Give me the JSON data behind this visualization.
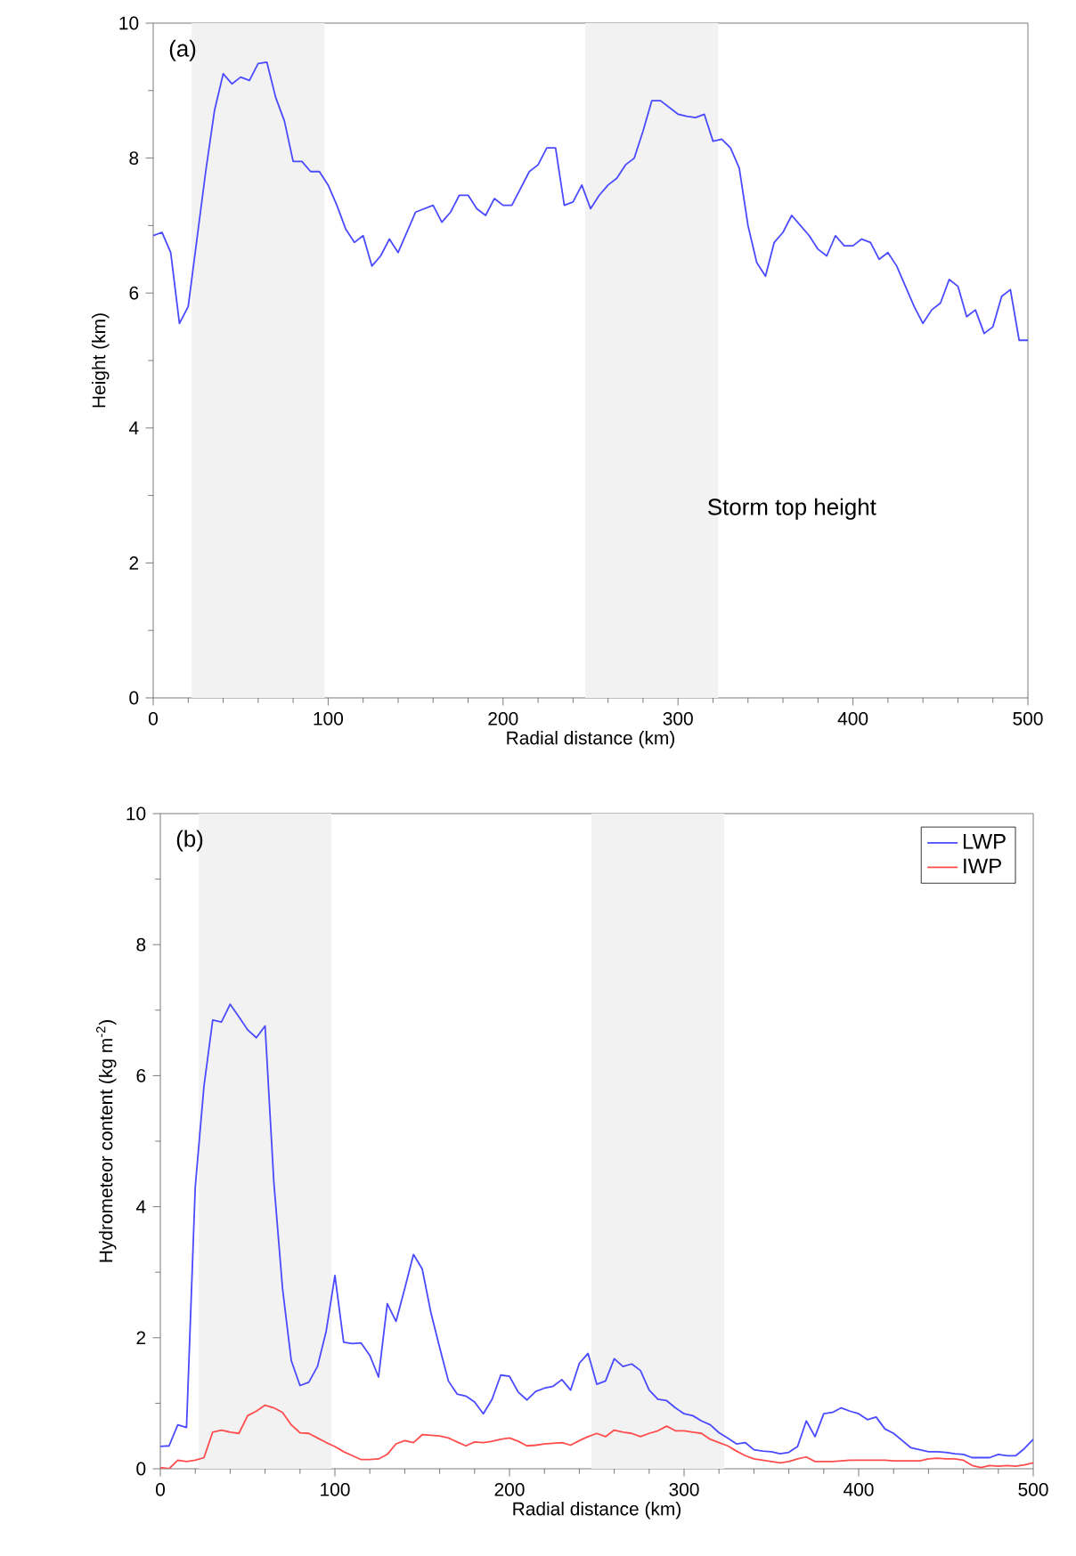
{
  "chart_data": [
    {
      "type": "line",
      "xlabel": "Radial distance (km)",
      "ylabel": "Height (km)",
      "annotations": [
        "(a)",
        "Storm top height"
      ],
      "xlim": [
        0,
        500
      ],
      "ylim": [
        0,
        10
      ],
      "xticks": [
        0,
        100,
        200,
        300,
        400,
        500
      ],
      "yticks": [
        0,
        2,
        4,
        6,
        8,
        10
      ],
      "grid": false,
      "legend": false,
      "bands": [
        {
          "axis": "x",
          "from": 22,
          "to": 98,
          "color": "#f2f2f2"
        },
        {
          "axis": "x",
          "from": 247,
          "to": 323,
          "color": "#f2f2f2"
        }
      ],
      "x": [
        0,
        5,
        10,
        15,
        20,
        25,
        30,
        35,
        40,
        45,
        50,
        55,
        60,
        65,
        70,
        75,
        80,
        85,
        90,
        95,
        100,
        105,
        110,
        115,
        120,
        125,
        130,
        135,
        140,
        145,
        150,
        155,
        160,
        165,
        170,
        175,
        180,
        185,
        190,
        195,
        200,
        205,
        210,
        215,
        220,
        225,
        230,
        235,
        240,
        245,
        250,
        255,
        260,
        265,
        270,
        275,
        280,
        285,
        290,
        295,
        300,
        305,
        310,
        315,
        320,
        325,
        330,
        335,
        340,
        345,
        350,
        355,
        360,
        365,
        370,
        375,
        380,
        385,
        390,
        395,
        400,
        405,
        410,
        415,
        420,
        425,
        430,
        435,
        440,
        445,
        450,
        455,
        460,
        465,
        470,
        475,
        480,
        485,
        490,
        495,
        500
      ],
      "series": [
        {
          "color": "#4a4aff",
          "values": [
            6.85,
            6.9,
            6.6,
            5.55,
            5.8,
            6.8,
            7.8,
            8.7,
            9.25,
            9.1,
            9.2,
            9.15,
            9.4,
            9.42,
            8.9,
            8.55,
            7.95,
            7.95,
            7.8,
            7.8,
            7.6,
            7.3,
            6.95,
            6.75,
            6.85,
            6.4,
            6.55,
            6.8,
            6.6,
            6.9,
            7.2,
            7.25,
            7.3,
            7.05,
            7.2,
            7.45,
            7.45,
            7.25,
            7.15,
            7.4,
            7.3,
            7.3,
            7.55,
            7.8,
            7.9,
            8.15,
            8.15,
            7.3,
            7.35,
            7.6,
            7.25,
            7.45,
            7.6,
            7.7,
            7.9,
            8.0,
            8.4,
            8.85,
            8.85,
            8.75,
            8.65,
            8.62,
            8.6,
            8.65,
            8.25,
            8.28,
            8.15,
            7.85,
            7.0,
            6.45,
            6.25,
            6.75,
            6.9,
            7.15,
            7.0,
            6.85,
            6.65,
            6.55,
            6.85,
            6.7,
            6.7,
            6.8,
            6.75,
            6.5,
            6.6,
            6.4,
            6.1,
            5.8,
            5.55,
            5.75,
            5.85,
            6.2,
            6.1,
            5.65,
            5.75,
            5.4,
            5.5,
            5.95,
            6.05,
            5.3,
            5.3
          ]
        }
      ]
    },
    {
      "type": "line",
      "xlabel": "Radial distance (km)",
      "ylabel": "Hydrometeor content (kg m$^{-2}$)",
      "annotations": [
        "(b)"
      ],
      "xlim": [
        0,
        500
      ],
      "ylim": [
        0,
        10
      ],
      "xticks": [
        0,
        100,
        200,
        300,
        400,
        500
      ],
      "yticks": [
        0,
        2,
        4,
        6,
        8,
        10
      ],
      "grid": false,
      "legend": "top right",
      "bands": [
        {
          "axis": "x",
          "from": 22,
          "to": 98,
          "color": "#f2f2f2"
        },
        {
          "axis": "x",
          "from": 247,
          "to": 323,
          "color": "#f2f2f2"
        }
      ],
      "x": [
        0,
        5,
        10,
        15,
        20,
        25,
        30,
        35,
        40,
        45,
        50,
        55,
        60,
        65,
        70,
        75,
        80,
        85,
        90,
        95,
        100,
        105,
        110,
        115,
        120,
        125,
        130,
        135,
        140,
        145,
        150,
        155,
        160,
        165,
        170,
        175,
        180,
        185,
        190,
        195,
        200,
        205,
        210,
        215,
        220,
        225,
        230,
        235,
        240,
        245,
        250,
        255,
        260,
        265,
        270,
        275,
        280,
        285,
        290,
        295,
        300,
        305,
        310,
        315,
        320,
        325,
        330,
        335,
        340,
        345,
        350,
        355,
        360,
        365,
        370,
        375,
        380,
        385,
        390,
        395,
        400,
        405,
        410,
        415,
        420,
        425,
        430,
        435,
        440,
        445,
        450,
        455,
        460,
        465,
        470,
        475,
        480,
        485,
        490,
        495,
        500
      ],
      "series": [
        {
          "name": "LWP",
          "color": "#4a4aff",
          "values": [
            0.34,
            0.35,
            0.67,
            0.63,
            4.3,
            5.84,
            6.85,
            6.82,
            7.09,
            6.9,
            6.7,
            6.58,
            6.76,
            4.38,
            2.75,
            1.65,
            1.27,
            1.32,
            1.56,
            2.1,
            2.95,
            1.93,
            1.91,
            1.92,
            1.73,
            1.4,
            2.52,
            2.25,
            2.75,
            3.27,
            3.05,
            2.38,
            1.85,
            1.34,
            1.14,
            1.11,
            1.02,
            0.84,
            1.06,
            1.43,
            1.41,
            1.17,
            1.05,
            1.18,
            1.23,
            1.26,
            1.36,
            1.2,
            1.61,
            1.76,
            1.29,
            1.34,
            1.68,
            1.56,
            1.6,
            1.5,
            1.2,
            1.06,
            1.04,
            0.93,
            0.84,
            0.81,
            0.73,
            0.67,
            0.55,
            0.47,
            0.38,
            0.4,
            0.29,
            0.27,
            0.26,
            0.23,
            0.25,
            0.34,
            0.73,
            0.49,
            0.84,
            0.86,
            0.93,
            0.88,
            0.84,
            0.75,
            0.79,
            0.61,
            0.54,
            0.43,
            0.32,
            0.29,
            0.26,
            0.26,
            0.25,
            0.23,
            0.22,
            0.17,
            0.17,
            0.17,
            0.22,
            0.2,
            0.2,
            0.31,
            0.45
          ]
        },
        {
          "name": "IWP",
          "color": "#ff4d4d",
          "values": [
            0.02,
            0,
            0.13,
            0.11,
            0.13,
            0.17,
            0.56,
            0.59,
            0.56,
            0.54,
            0.81,
            0.88,
            0.97,
            0.93,
            0.86,
            0.67,
            0.55,
            0.54,
            0.47,
            0.4,
            0.34,
            0.26,
            0.2,
            0.14,
            0.14,
            0.15,
            0.22,
            0.38,
            0.43,
            0.4,
            0.52,
            0.51,
            0.5,
            0.47,
            0.41,
            0.35,
            0.41,
            0.4,
            0.42,
            0.45,
            0.47,
            0.42,
            0.35,
            0.36,
            0.38,
            0.39,
            0.4,
            0.36,
            0.43,
            0.49,
            0.54,
            0.49,
            0.59,
            0.56,
            0.54,
            0.49,
            0.54,
            0.58,
            0.65,
            0.58,
            0.58,
            0.56,
            0.54,
            0.45,
            0.4,
            0.35,
            0.27,
            0.2,
            0.15,
            0.13,
            0.11,
            0.09,
            0.11,
            0.15,
            0.18,
            0.11,
            0.11,
            0.11,
            0.12,
            0.13,
            0.13,
            0.13,
            0.13,
            0.13,
            0.12,
            0.12,
            0.12,
            0.12,
            0.15,
            0.16,
            0.15,
            0.15,
            0.13,
            0.05,
            0.02,
            0.05,
            0.04,
            0.05,
            0.04,
            0.06,
            0.09
          ]
        }
      ]
    }
  ]
}
